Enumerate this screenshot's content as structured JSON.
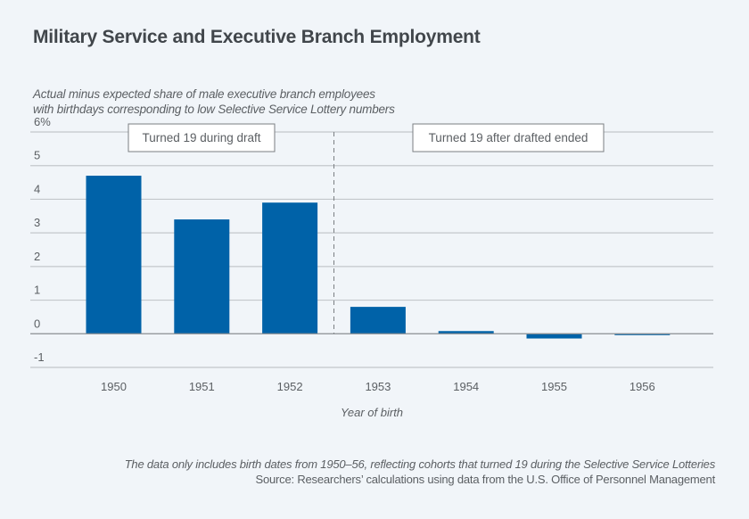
{
  "chart_data": {
    "type": "bar",
    "title": "Military Service and Executive Branch Employment",
    "subtitle_lines": [
      "Actual minus expected share of male executive branch employees",
      "with birthdays corresponding to low Selective Service Lottery numbers"
    ],
    "categories": [
      "1950",
      "1951",
      "1952",
      "1953",
      "1954",
      "1955",
      "1956"
    ],
    "values": [
      4.7,
      3.4,
      3.9,
      0.8,
      0.08,
      -0.14,
      -0.04
    ],
    "xlabel": "Year of birth",
    "ylabel": "",
    "ylim": [
      -1,
      6
    ],
    "yticks": [
      -1,
      0,
      1,
      2,
      3,
      4,
      5,
      6
    ],
    "ytick_labels": [
      "-1",
      "0",
      "1",
      "2",
      "3",
      "4",
      "5",
      "6%"
    ],
    "grid": true,
    "bar_color": "#0062a8",
    "divider": {
      "between": [
        "1952",
        "1953"
      ],
      "style": "dashed"
    },
    "annotations": [
      {
        "text": "Turned 19 during draft",
        "region": "left"
      },
      {
        "text": "Turned 19 after drafted ended",
        "region": "right"
      }
    ],
    "legend": "none"
  },
  "footer": {
    "note": "The data only includes birth dates from 1950–56, reflecting cohorts that turned 19 during the Selective Service Lotteries",
    "source": "Source: Researchers’ calculations using data from the U.S. Office of Personnel Management"
  }
}
